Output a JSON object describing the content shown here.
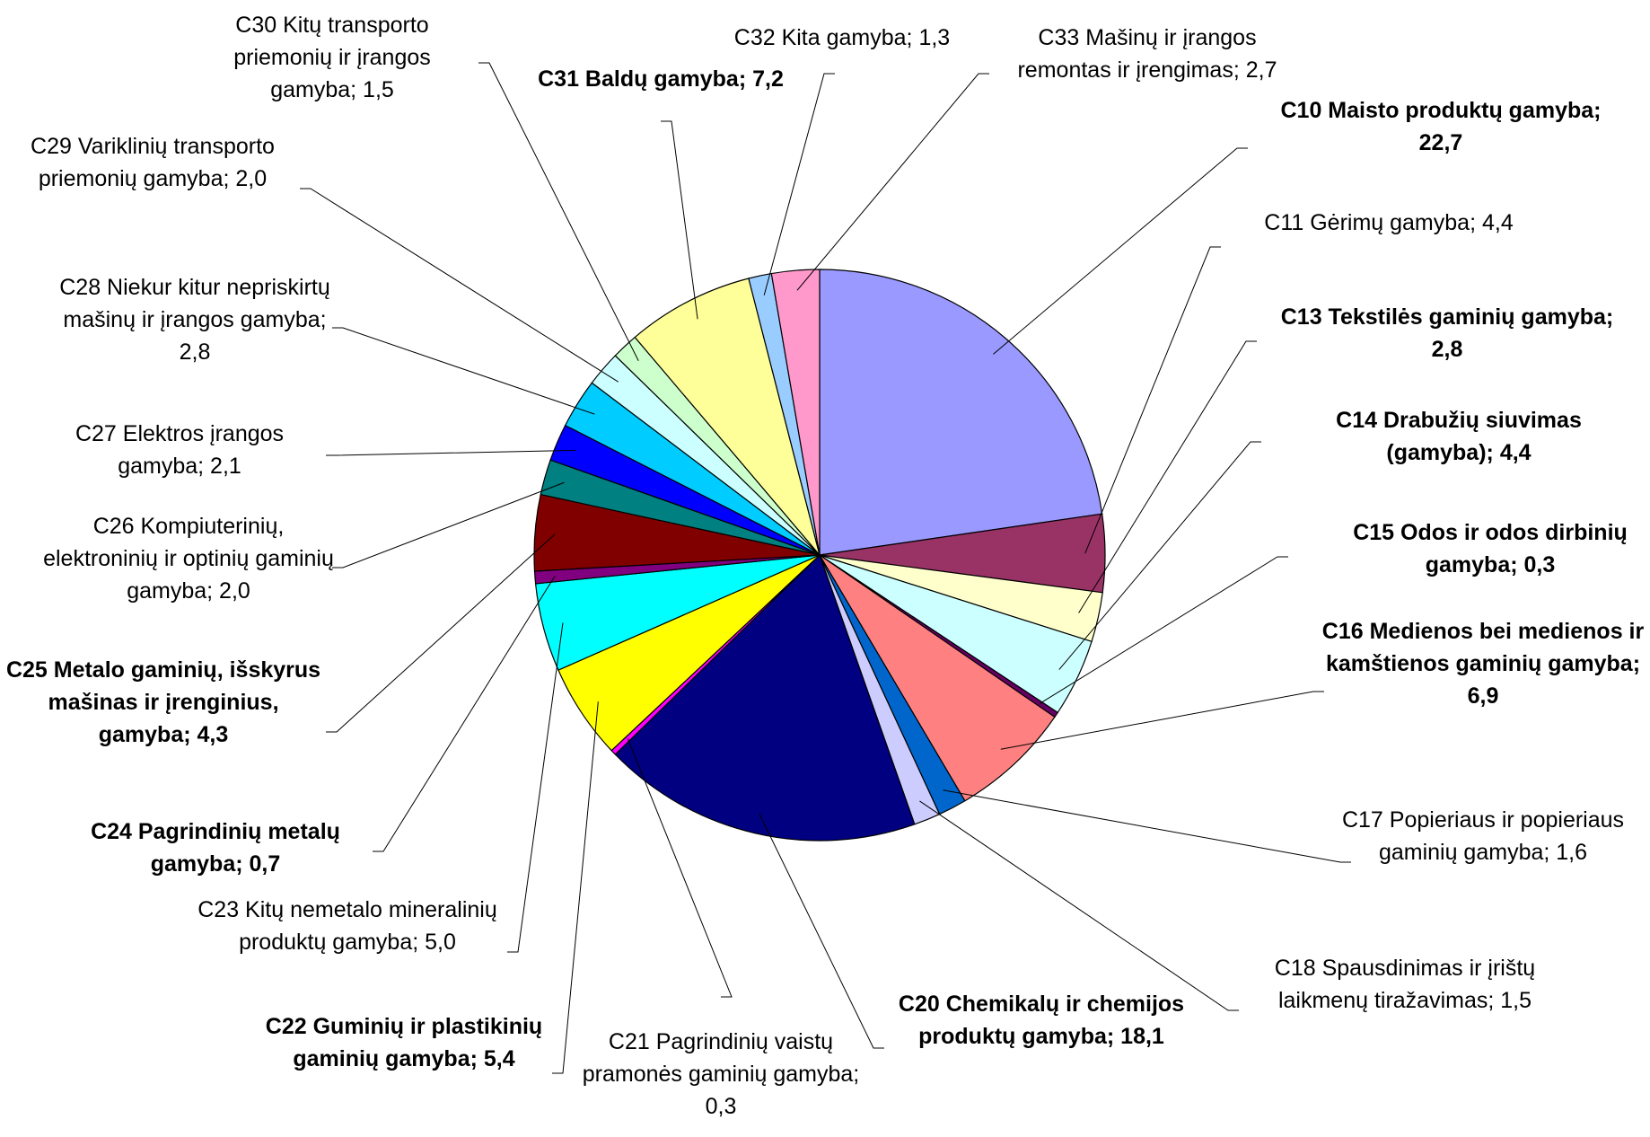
{
  "chart_data": {
    "type": "pie",
    "categories": [
      "C10 Maisto produktų gamyba",
      "C11 Gėrimų gamyba",
      "C13 Tekstilės gaminių gamyba",
      "C14 Drabužių siuvimas (gamyba)",
      "C15 Odos ir odos dirbinių gamyba",
      "C16 Medienos bei medienos ir kamštienos gaminių gamyba",
      "C17 Popieriaus ir popieriaus gaminių gamyba",
      "C18 Spausdinimas ir įrištų laikmenų tiražavimas",
      "C20 Chemikalų ir chemijos produktų gamyba",
      "C21 Pagrindinių vaistų pramonės gaminių gamyba",
      "C22 Guminių ir plastikinių gaminių gamyba",
      "C23 Kitų nemetalo mineralinių produktų gamyba",
      "C24 Pagrindinių metalų gamyba",
      "C25 Metalo gaminių, išskyrus mašinas ir įrenginius, gamyba",
      "C26 Kompiuterinių, elektroninių ir optinių gaminių gamyba",
      "C27 Elektros įrangos gamyba",
      "C28 Niekur kitur nepriskirtų mašinų ir įrangos gamyba",
      "C29 Variklinių transporto priemonių gamyba",
      "C30 Kitų transporto priemonių ir įrangos gamyba",
      "C31 Baldų gamyba",
      "C32 Kita gamyba",
      "C33 Mašinų ir įrangos remontas ir įrengimas"
    ],
    "values": [
      22.7,
      4.4,
      2.8,
      4.4,
      0.3,
      6.9,
      1.6,
      1.5,
      18.1,
      0.3,
      5.4,
      5.0,
      0.7,
      4.3,
      2.0,
      2.1,
      2.8,
      2.0,
      1.5,
      7.2,
      1.3,
      2.7
    ],
    "value_labels": [
      "22,7",
      "4,4",
      "2,8",
      "4,4",
      "0,3",
      "6,9",
      "1,6",
      "1,5",
      "18,1",
      "0,3",
      "5,4",
      "5,0",
      "0,7",
      "4,3",
      "2,0",
      "2,1",
      "2,8",
      "2,0",
      "1,5",
      "7,2",
      "1,3",
      "2,7"
    ],
    "label_separator": "; ",
    "bold_labels": [
      true,
      false,
      true,
      true,
      true,
      true,
      false,
      false,
      true,
      false,
      true,
      false,
      true,
      true,
      false,
      false,
      false,
      false,
      false,
      true,
      false,
      false
    ],
    "colors": [
      "#9999ff",
      "#993366",
      "#ffffcc",
      "#ccffff",
      "#660066",
      "#ff8080",
      "#0066cc",
      "#ccccff",
      "#000080",
      "#ff00ff",
      "#ffff00",
      "#00ffff",
      "#800080",
      "#800000",
      "#008080",
      "#0000ff",
      "#00ccff",
      "#ccffff",
      "#ccffcc",
      "#ffff99",
      "#99ccff",
      "#ff99cc"
    ]
  }
}
